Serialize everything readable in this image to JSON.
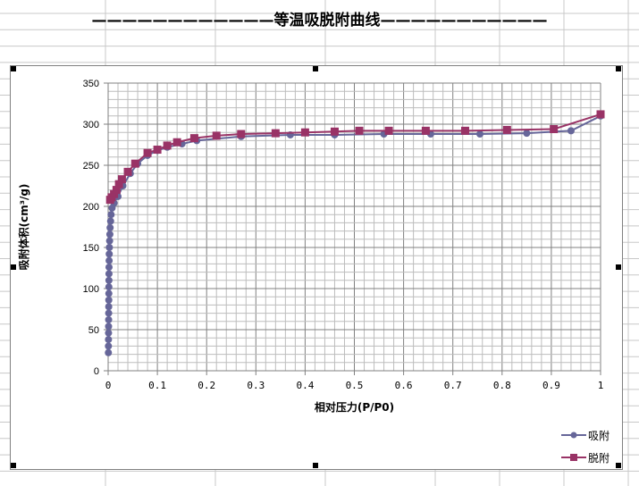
{
  "sheet_title": "————————————等温吸脱附曲线———————————",
  "chart_data": {
    "type": "line",
    "title": "",
    "xlabel": "相对压力(P/P0)",
    "ylabel": "吸附体积(cm³/g)",
    "xlim": [
      0,
      1
    ],
    "ylim": [
      0,
      350
    ],
    "xticks": [
      "0",
      "0.1",
      "0.2",
      "0.3",
      "0.4",
      "0.5",
      "0.6",
      "0.7",
      "0.8",
      "0.9",
      "1"
    ],
    "yticks": [
      "0",
      "50",
      "100",
      "150",
      "200",
      "250",
      "300",
      "350"
    ],
    "grid": true,
    "legend": "bottom-right",
    "series": [
      {
        "name": "吸附",
        "color": "#666699",
        "marker": "circle",
        "x": [
          0.0005,
          0.0006,
          0.0007,
          0.0008,
          0.0009,
          0.001,
          0.0011,
          0.0012,
          0.0013,
          0.0014,
          0.0015,
          0.0016,
          0.0017,
          0.0018,
          0.002,
          0.0022,
          0.0025,
          0.003,
          0.0035,
          0.004,
          0.005,
          0.006,
          0.008,
          0.012,
          0.02,
          0.03,
          0.045,
          0.06,
          0.08,
          0.1,
          0.12,
          0.15,
          0.18,
          0.27,
          0.37,
          0.46,
          0.56,
          0.655,
          0.755,
          0.85,
          0.94,
          1.0
        ],
        "y": [
          22,
          30,
          38,
          46,
          54,
          62,
          70,
          78,
          86,
          94,
          102,
          110,
          118,
          126,
          134,
          142,
          150,
          158,
          166,
          174,
          182,
          190,
          198,
          204,
          212,
          225,
          240,
          252,
          262,
          268,
          272,
          276,
          280,
          285,
          287,
          287,
          288,
          288,
          288,
          289,
          292,
          310
        ]
      },
      {
        "name": "脱附",
        "color": "#993366",
        "marker": "square",
        "x": [
          1.0,
          0.905,
          0.81,
          0.725,
          0.645,
          0.57,
          0.51,
          0.46,
          0.4,
          0.34,
          0.27,
          0.22,
          0.175,
          0.14,
          0.12,
          0.1,
          0.08,
          0.055,
          0.04,
          0.028,
          0.022,
          0.017,
          0.012,
          0.007,
          0.004
        ],
        "y": [
          312,
          294,
          293,
          292,
          292,
          292,
          292,
          291,
          290,
          289,
          288,
          286,
          283,
          278,
          274,
          269,
          265,
          252,
          242,
          233,
          227,
          220,
          215,
          211,
          208
        ]
      }
    ]
  }
}
